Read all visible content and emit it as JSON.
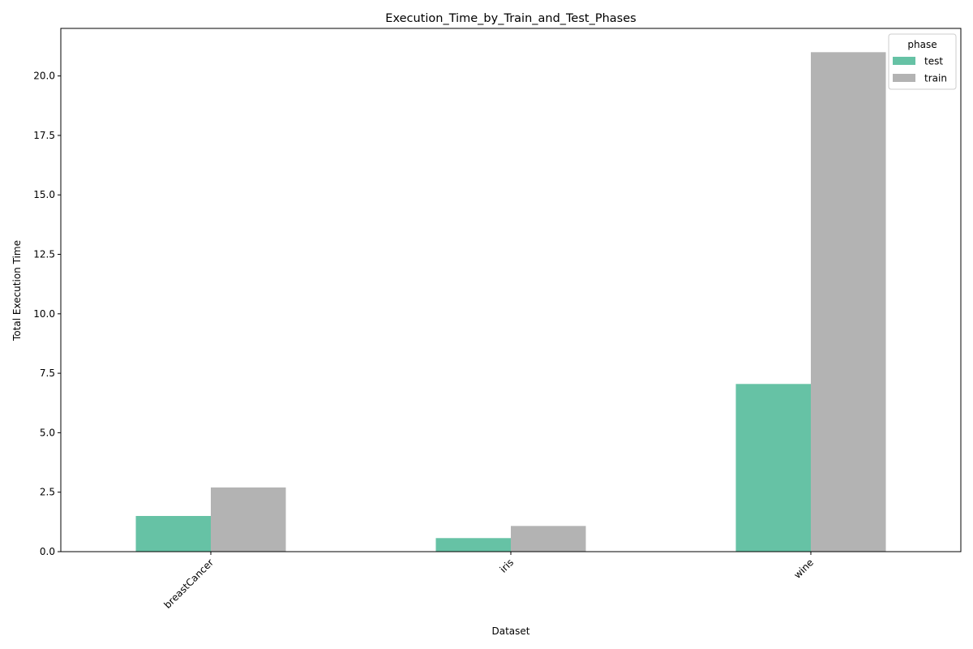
{
  "chart_data": {
    "type": "bar",
    "title": "Execution_Time_by_Train_and_Test_Phases",
    "xlabel": "Dataset",
    "ylabel": "Total Execution Time",
    "categories": [
      "breastCancer",
      "iris",
      "wine"
    ],
    "series": [
      {
        "name": "test",
        "values": [
          1.5,
          0.57,
          7.05
        ],
        "color": "#66c2a5"
      },
      {
        "name": "train",
        "values": [
          2.7,
          1.08,
          21.0
        ],
        "color": "#b3b3b3"
      }
    ],
    "ylim": [
      0,
      22
    ],
    "yticks": [
      0.0,
      2.5,
      5.0,
      7.5,
      10.0,
      12.5,
      15.0,
      17.5,
      20.0
    ],
    "ytick_labels": [
      "0.0",
      "2.5",
      "5.0",
      "7.5",
      "10.0",
      "12.5",
      "15.0",
      "17.5",
      "20.0"
    ],
    "legend": {
      "title": "phase",
      "placement": "top-right"
    },
    "grid": false
  }
}
